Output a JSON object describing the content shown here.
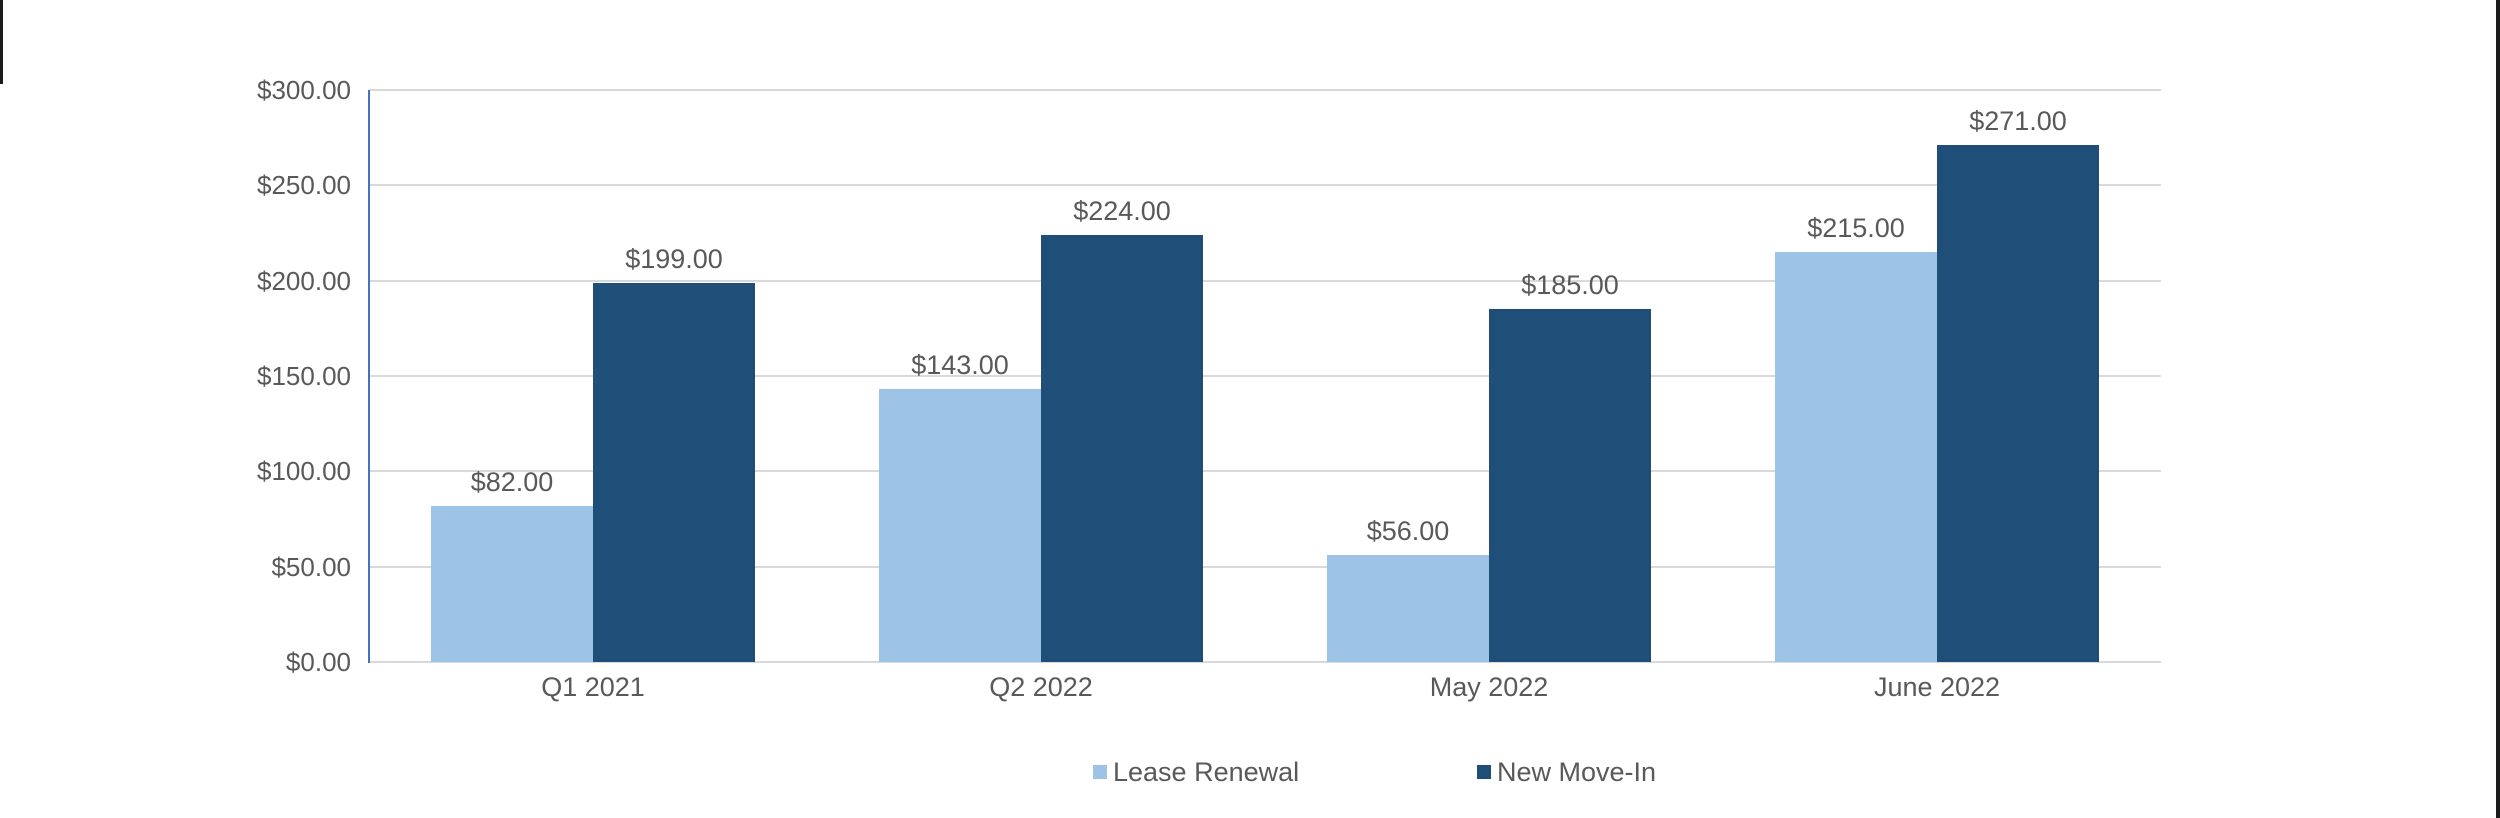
{
  "window": {
    "border_color": "#1b1b1b"
  },
  "colors": {
    "background": "#ffffff",
    "gridline": "#d9d9d9",
    "y_axis_line": "#4472c4",
    "text": "#595959"
  },
  "chart_data": {
    "type": "bar",
    "title": "",
    "xlabel": "",
    "ylabel": "",
    "grid": true,
    "legend_position": "bottom",
    "categories": [
      "Q1 2021",
      "Q2 2022",
      "May 2022",
      "June 2022"
    ],
    "series": [
      {
        "name": "Lease Renewal",
        "color": "#9DC3E6",
        "values": [
          82,
          143,
          56,
          215
        ],
        "data_labels": [
          "$82.00",
          "$143.00",
          "$56.00",
          "$215.00"
        ]
      },
      {
        "name": "New Move-In",
        "color": "#1F4E79",
        "values": [
          199,
          224,
          185,
          271
        ],
        "data_labels": [
          "$199.00",
          "$224.00",
          "$185.00",
          "$271.00"
        ]
      }
    ],
    "ylim": [
      0,
      300
    ],
    "ytick_step": 50,
    "ytick_labels": [
      "$0.00",
      "$50.00",
      "$100.00",
      "$150.00",
      "$200.00",
      "$250.00",
      "$300.00"
    ]
  }
}
